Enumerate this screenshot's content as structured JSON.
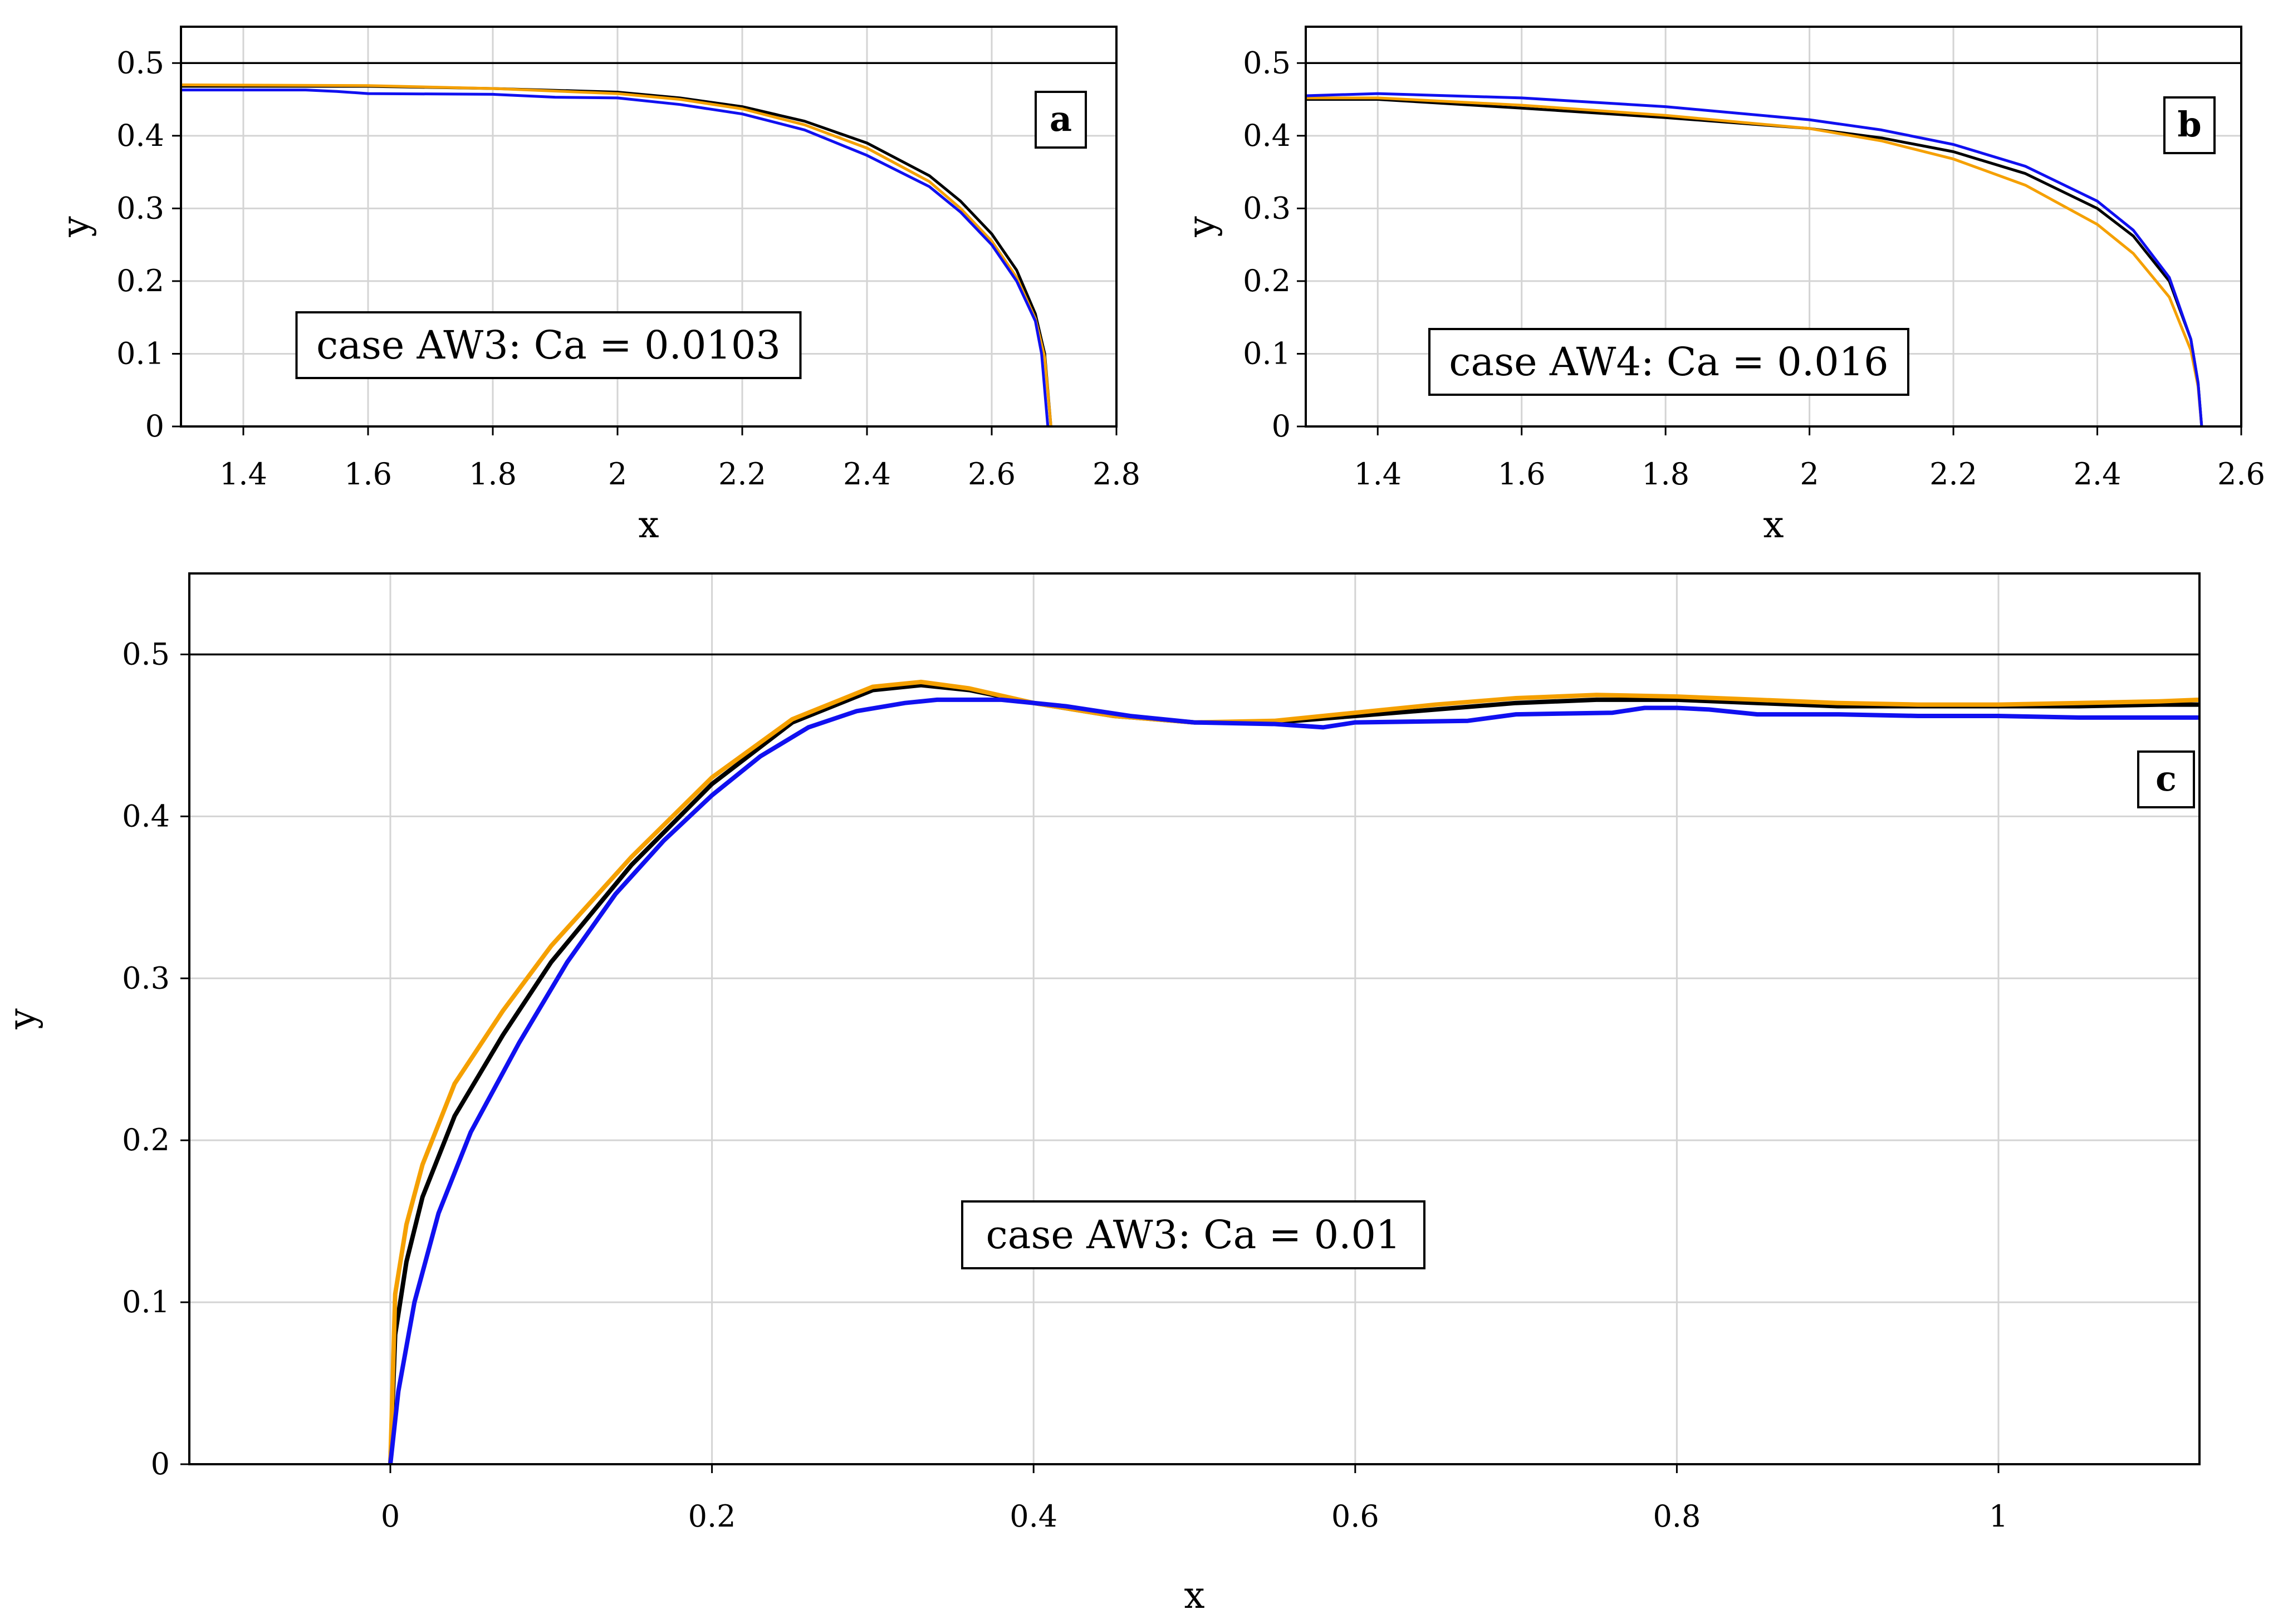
{
  "chart_data": [
    {
      "id": "a",
      "type": "line",
      "xlabel": "x",
      "ylabel": "y",
      "xlim": [
        1.3,
        2.8
      ],
      "ylim": [
        0,
        0.55
      ],
      "xticks": [
        1.4,
        1.6,
        1.8,
        2,
        2.2,
        2.4,
        2.6,
        2.8
      ],
      "xtick_labels": [
        "1.4",
        "1.6",
        "1.8",
        "2",
        "2.2",
        "2.4",
        "2.6",
        "2.8"
      ],
      "yticks": [
        0,
        0.1,
        0.2,
        0.3,
        0.4,
        0.5
      ],
      "ytick_labels": [
        "0",
        "0.1",
        "0.2",
        "0.3",
        "0.4",
        "0.5"
      ],
      "hline": 0.5,
      "grid": true,
      "annotation": "case AW3: Ca = 0.0103",
      "panel_label": "a",
      "series": [
        {
          "name": "black",
          "color": "#000000",
          "x": [
            1.3,
            1.6,
            1.8,
            2.0,
            2.1,
            2.2,
            2.3,
            2.4,
            2.5,
            2.55,
            2.6,
            2.64,
            2.67,
            2.685,
            2.695
          ],
          "y": [
            0.468,
            0.468,
            0.465,
            0.46,
            0.452,
            0.44,
            0.42,
            0.39,
            0.345,
            0.31,
            0.265,
            0.215,
            0.155,
            0.1,
            0
          ]
        },
        {
          "name": "orange",
          "color": "#f5a000",
          "x": [
            1.3,
            1.6,
            1.8,
            2.0,
            2.1,
            2.2,
            2.3,
            2.4,
            2.5,
            2.55,
            2.6,
            2.64,
            2.67,
            2.685,
            2.695
          ],
          "y": [
            0.47,
            0.469,
            0.465,
            0.458,
            0.45,
            0.437,
            0.415,
            0.383,
            0.337,
            0.3,
            0.255,
            0.205,
            0.148,
            0.095,
            0
          ]
        },
        {
          "name": "blue",
          "color": "#1010f0",
          "x": [
            1.3,
            1.5,
            1.55,
            1.6,
            1.8,
            1.9,
            2.0,
            2.1,
            2.2,
            2.3,
            2.4,
            2.5,
            2.55,
            2.6,
            2.64,
            2.67,
            2.68,
            2.69
          ],
          "y": [
            0.463,
            0.463,
            0.461,
            0.458,
            0.457,
            0.453,
            0.452,
            0.443,
            0.43,
            0.408,
            0.373,
            0.33,
            0.295,
            0.25,
            0.2,
            0.145,
            0.1,
            0
          ]
        }
      ]
    },
    {
      "id": "b",
      "type": "line",
      "xlabel": "x",
      "ylabel": "y",
      "xlim": [
        1.3,
        2.6
      ],
      "ylim": [
        0,
        0.55
      ],
      "xticks": [
        1.4,
        1.6,
        1.8,
        2,
        2.2,
        2.4,
        2.6
      ],
      "xtick_labels": [
        "1.4",
        "1.6",
        "1.8",
        "2",
        "2.2",
        "2.4",
        "2.6"
      ],
      "yticks": [
        0,
        0.1,
        0.2,
        0.3,
        0.4,
        0.5
      ],
      "ytick_labels": [
        "0",
        "0.1",
        "0.2",
        "0.3",
        "0.4",
        "0.5"
      ],
      "hline": 0.5,
      "grid": true,
      "annotation": "case AW4: Ca = 0.016",
      "panel_label": "b",
      "series": [
        {
          "name": "black",
          "color": "#000000",
          "x": [
            1.3,
            1.4,
            1.6,
            1.8,
            2.0,
            2.1,
            2.2,
            2.3,
            2.4,
            2.45,
            2.5,
            2.53,
            2.54,
            2.545
          ],
          "y": [
            0.45,
            0.45,
            0.438,
            0.425,
            0.41,
            0.397,
            0.378,
            0.348,
            0.3,
            0.262,
            0.2,
            0.12,
            0.06,
            0
          ]
        },
        {
          "name": "orange",
          "color": "#f5a000",
          "x": [
            1.3,
            1.4,
            1.6,
            1.8,
            2.0,
            2.1,
            2.2,
            2.3,
            2.4,
            2.45,
            2.5,
            2.53,
            2.54,
            2.545
          ],
          "y": [
            0.452,
            0.452,
            0.442,
            0.428,
            0.41,
            0.393,
            0.368,
            0.332,
            0.278,
            0.238,
            0.178,
            0.105,
            0.055,
            0
          ]
        },
        {
          "name": "blue",
          "color": "#1010f0",
          "x": [
            1.3,
            1.4,
            1.6,
            1.8,
            2.0,
            2.1,
            2.2,
            2.3,
            2.4,
            2.45,
            2.5,
            2.53,
            2.54,
            2.545
          ],
          "y": [
            0.455,
            0.458,
            0.452,
            0.44,
            0.422,
            0.408,
            0.388,
            0.358,
            0.31,
            0.27,
            0.205,
            0.12,
            0.06,
            0
          ]
        }
      ]
    },
    {
      "id": "c",
      "type": "line",
      "xlabel": "x",
      "ylabel": "y",
      "xlim": [
        -0.125,
        1.125
      ],
      "ylim": [
        0,
        0.55
      ],
      "xticks": [
        0,
        0.2,
        0.4,
        0.6,
        0.8,
        1
      ],
      "xtick_labels": [
        "0",
        "0.2",
        "0.4",
        "0.6",
        "0.8",
        "1"
      ],
      "yticks": [
        0,
        0.1,
        0.2,
        0.3,
        0.4,
        0.5
      ],
      "ytick_labels": [
        "0",
        "0.1",
        "0.2",
        "0.3",
        "0.4",
        "0.5"
      ],
      "hline": 0.5,
      "grid": true,
      "annotation": "case AW3: Ca = 0.01",
      "panel_label": "c",
      "series": [
        {
          "name": "black",
          "color": "#000000",
          "x": [
            0,
            0.003,
            0.01,
            0.02,
            0.04,
            0.07,
            0.1,
            0.15,
            0.2,
            0.25,
            0.3,
            0.33,
            0.36,
            0.4,
            0.45,
            0.5,
            0.55,
            0.6,
            0.65,
            0.7,
            0.75,
            0.8,
            0.85,
            0.9,
            0.95,
            1.0,
            1.05,
            1.1,
            1.125
          ],
          "y": [
            0,
            0.08,
            0.125,
            0.165,
            0.215,
            0.265,
            0.31,
            0.37,
            0.42,
            0.458,
            0.478,
            0.481,
            0.478,
            0.47,
            0.462,
            0.458,
            0.458,
            0.462,
            0.466,
            0.47,
            0.472,
            0.472,
            0.47,
            0.468,
            0.468,
            0.468,
            0.468,
            0.469,
            0.469
          ]
        },
        {
          "name": "orange",
          "color": "#f5a000",
          "x": [
            0,
            0.003,
            0.01,
            0.02,
            0.04,
            0.07,
            0.1,
            0.15,
            0.2,
            0.25,
            0.3,
            0.33,
            0.36,
            0.4,
            0.45,
            0.5,
            0.55,
            0.6,
            0.65,
            0.7,
            0.75,
            0.8,
            0.85,
            0.9,
            0.95,
            1.0,
            1.05,
            1.1,
            1.125
          ],
          "y": [
            0,
            0.105,
            0.148,
            0.185,
            0.235,
            0.28,
            0.32,
            0.375,
            0.424,
            0.46,
            0.48,
            0.483,
            0.479,
            0.47,
            0.462,
            0.458,
            0.459,
            0.464,
            0.469,
            0.473,
            0.475,
            0.474,
            0.472,
            0.47,
            0.469,
            0.469,
            0.47,
            0.471,
            0.472
          ]
        },
        {
          "name": "blue",
          "color": "#1010f0",
          "x": [
            0,
            0.005,
            0.015,
            0.03,
            0.05,
            0.08,
            0.11,
            0.14,
            0.17,
            0.2,
            0.23,
            0.26,
            0.29,
            0.32,
            0.34,
            0.38,
            0.42,
            0.46,
            0.5,
            0.55,
            0.58,
            0.6,
            0.67,
            0.7,
            0.76,
            0.78,
            0.8,
            0.82,
            0.85,
            0.9,
            0.95,
            1.0,
            1.05,
            1.1,
            1.125
          ],
          "y": [
            0,
            0.045,
            0.1,
            0.155,
            0.205,
            0.26,
            0.31,
            0.352,
            0.385,
            0.413,
            0.437,
            0.455,
            0.465,
            0.47,
            0.472,
            0.472,
            0.468,
            0.462,
            0.458,
            0.457,
            0.455,
            0.458,
            0.459,
            0.463,
            0.464,
            0.467,
            0.467,
            0.466,
            0.463,
            0.463,
            0.462,
            0.462,
            0.461,
            0.461,
            0.461
          ]
        }
      ]
    }
  ]
}
